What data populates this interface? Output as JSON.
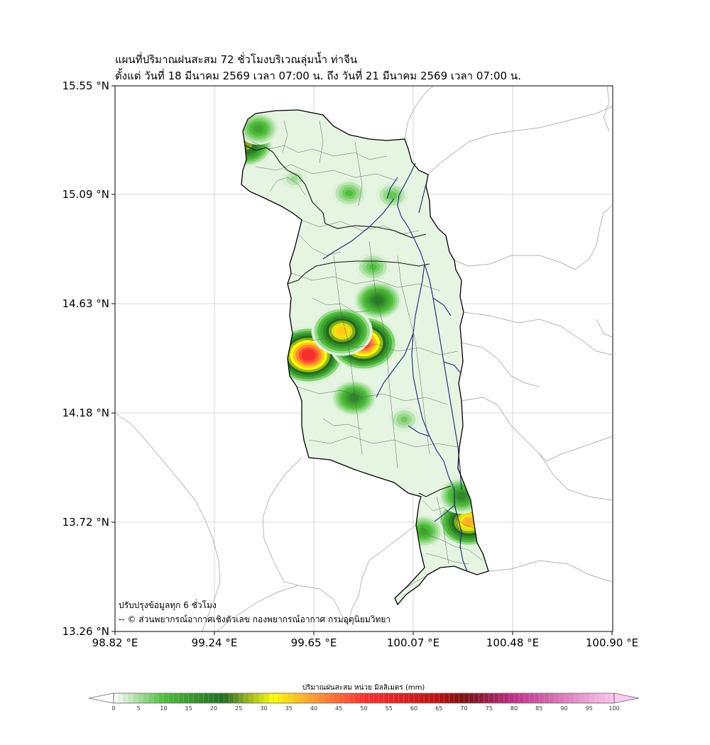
{
  "title": {
    "line1": "แผนที่ปริมาณฝนสะสม 72 ชั่วโมงบริเวณลุ่มน้ำ ท่าจีน",
    "line2": "ตั้งแต่ วันที่ 18 มีนาคม 2569 เวลา 07:00 น. ถึง วันที่ 21 มีนาคม 2569 เวลา 07:00 น."
  },
  "axes": {
    "lat_ticks": [
      "15.55 °N",
      "15.09 °N",
      "14.63 °N",
      "14.18 °N",
      "13.72 °N",
      "13.26 °N"
    ],
    "lon_ticks": [
      "98.82 °E",
      "99.24 °E",
      "99.65 °E",
      "100.07 °E",
      "100.48 °E",
      "100.90 °E"
    ],
    "grid": true
  },
  "notes": {
    "update": "ปรับปรุงข้อมูลทุก 6 ชั่วโมง",
    "credit": "-- © ส่วนพยากรณ์อากาศเชิงตัวเลข กองพยากรณ์อากาศ กรมอุตุนิยมวิทยา"
  },
  "colorbar": {
    "title": "ปริมาณฝนสะสม หน่วย มิลลิเมตร (mm)",
    "min": 0,
    "max": 100,
    "step": 1,
    "labels": [
      "0",
      "5",
      "10",
      "15",
      "20",
      "25",
      "30",
      "35",
      "40",
      "45",
      "50",
      "55",
      "60",
      "65",
      "70",
      "75",
      "80",
      "85",
      "90",
      "95",
      "100"
    ],
    "stops": [
      {
        "v": 0,
        "c": "#ffffff"
      },
      {
        "v": 10,
        "c": "#4fbf3a"
      },
      {
        "v": 22,
        "c": "#1f6e1f"
      },
      {
        "v": 27,
        "c": "#9db81c"
      },
      {
        "v": 32,
        "c": "#ffff00"
      },
      {
        "v": 40,
        "c": "#ff9a2e"
      },
      {
        "v": 50,
        "c": "#ff3030"
      },
      {
        "v": 65,
        "c": "#c01010"
      },
      {
        "v": 70,
        "c": "#7a1010"
      },
      {
        "v": 80,
        "c": "#c0308a"
      },
      {
        "v": 100,
        "c": "#ffc8f0"
      }
    ]
  },
  "colors": {
    "basin_border": "#000000",
    "river": "#1a237e",
    "province_lines": "#999999",
    "grid": "#cccccc"
  },
  "rain_cells": [
    {
      "lon": 99.63,
      "lat": 14.42,
      "mm": 52
    },
    {
      "lon": 99.86,
      "lat": 14.47,
      "mm": 48
    },
    {
      "lon": 99.77,
      "lat": 14.52,
      "mm": 36
    },
    {
      "lon": 99.92,
      "lat": 14.65,
      "mm": 20
    },
    {
      "lon": 99.82,
      "lat": 14.24,
      "mm": 18
    },
    {
      "lon": 100.03,
      "lat": 14.15,
      "mm": 8
    },
    {
      "lon": 99.37,
      "lat": 15.3,
      "mm": 26
    },
    {
      "lon": 99.42,
      "lat": 15.37,
      "mm": 14
    },
    {
      "lon": 99.9,
      "lat": 14.79,
      "mm": 10
    },
    {
      "lon": 99.8,
      "lat": 15.1,
      "mm": 10
    },
    {
      "lon": 99.98,
      "lat": 15.09,
      "mm": 9
    },
    {
      "lon": 99.57,
      "lat": 15.16,
      "mm": 6
    },
    {
      "lon": 100.3,
      "lat": 13.72,
      "mm": 38
    },
    {
      "lon": 100.27,
      "lat": 13.83,
      "mm": 18
    },
    {
      "lon": 100.11,
      "lat": 13.68,
      "mm": 14
    }
  ]
}
